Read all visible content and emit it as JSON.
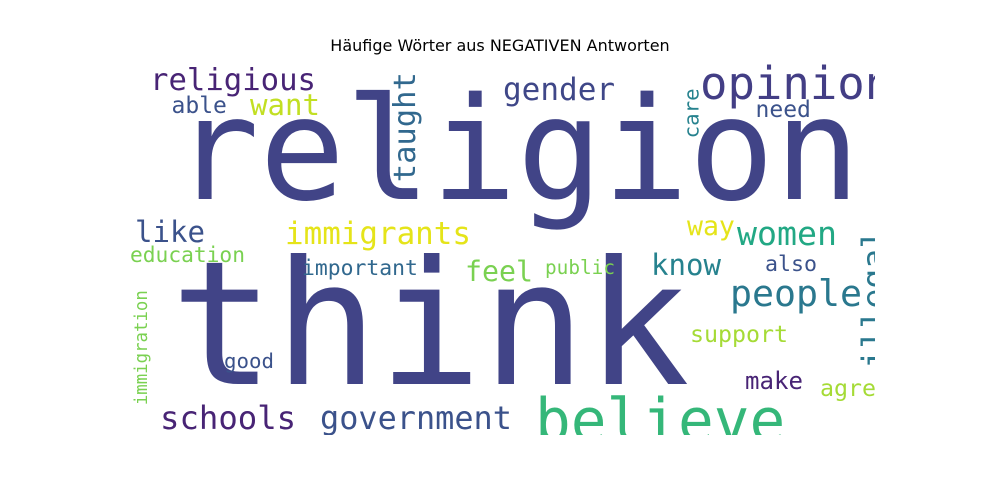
{
  "title": "Häufige Wörter aus NEGATIVEN Antworten",
  "words": [
    {
      "text": "religion",
      "color": "#414487",
      "orientation": "horizontal"
    },
    {
      "text": "think",
      "color": "#414487",
      "orientation": "horizontal"
    },
    {
      "text": "believe",
      "color": "#35b779",
      "orientation": "horizontal"
    },
    {
      "text": "opinion",
      "color": "#433e85",
      "orientation": "horizontal"
    },
    {
      "text": "religious",
      "color": "#482475",
      "orientation": "horizontal"
    },
    {
      "text": "gender",
      "color": "#3f4788",
      "orientation": "horizontal"
    },
    {
      "text": "taught",
      "color": "#31688e",
      "orientation": "vertical"
    },
    {
      "text": "want",
      "color": "#c2df23",
      "orientation": "horizontal"
    },
    {
      "text": "able",
      "color": "#3b528b",
      "orientation": "horizontal"
    },
    {
      "text": "care",
      "color": "#26828e",
      "orientation": "vertical"
    },
    {
      "text": "need",
      "color": "#3b528b",
      "orientation": "horizontal"
    },
    {
      "text": "immigrants",
      "color": "#e5e419",
      "orientation": "horizontal"
    },
    {
      "text": "women",
      "color": "#22a884",
      "orientation": "horizontal"
    },
    {
      "text": "way",
      "color": "#e5e419",
      "orientation": "horizontal"
    },
    {
      "text": "like",
      "color": "#3b528b",
      "orientation": "horizontal"
    },
    {
      "text": "education",
      "color": "#7ad151",
      "orientation": "horizontal"
    },
    {
      "text": "illegal",
      "color": "#2a788e",
      "orientation": "vertical"
    },
    {
      "text": "important",
      "color": "#31688e",
      "orientation": "horizontal"
    },
    {
      "text": "feel",
      "color": "#7ad151",
      "orientation": "horizontal"
    },
    {
      "text": "public",
      "color": "#7ad151",
      "orientation": "horizontal"
    },
    {
      "text": "know",
      "color": "#26828e",
      "orientation": "horizontal"
    },
    {
      "text": "also",
      "color": "#3b528b",
      "orientation": "horizontal"
    },
    {
      "text": "people",
      "color": "#2a788e",
      "orientation": "horizontal"
    },
    {
      "text": "immigration",
      "color": "#7ad151",
      "orientation": "vertical"
    },
    {
      "text": "support",
      "color": "#a5db36",
      "orientation": "horizontal"
    },
    {
      "text": "good",
      "color": "#3b528b",
      "orientation": "horizontal"
    },
    {
      "text": "make",
      "color": "#482475",
      "orientation": "horizontal"
    },
    {
      "text": "agree",
      "color": "#a5db36",
      "orientation": "horizontal"
    },
    {
      "text": "schools",
      "color": "#482475",
      "orientation": "horizontal"
    },
    {
      "text": "government",
      "color": "#3b528b",
      "orientation": "horizontal"
    }
  ]
}
